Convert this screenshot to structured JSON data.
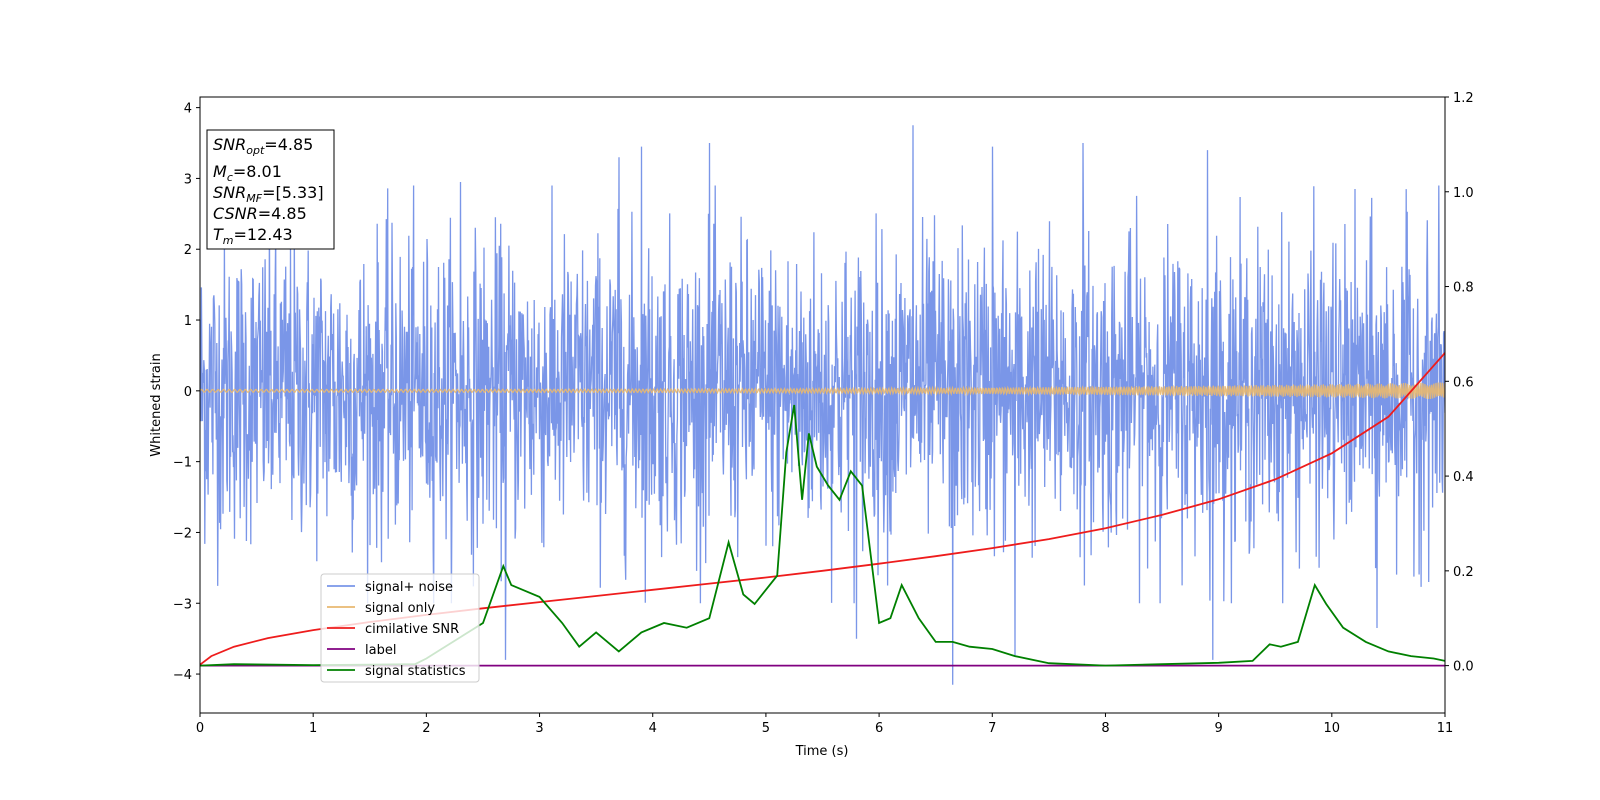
{
  "chart_data": {
    "type": "line",
    "xlabel": "Time (s)",
    "ylabel": "Whitened strain",
    "xlim": [
      0,
      11
    ],
    "ylim": [
      -4.55,
      4.15
    ],
    "y2lim": [
      -0.1,
      1.2
    ],
    "x_ticks": [
      "0",
      "1",
      "2",
      "3",
      "4",
      "5",
      "6",
      "7",
      "8",
      "9",
      "10",
      "11"
    ],
    "y_ticks": [
      "−4",
      "−3",
      "−2",
      "−1",
      "0",
      "1",
      "2",
      "3",
      "4"
    ],
    "y2_ticks": [
      "0.0",
      "0.2",
      "0.4",
      "0.6",
      "0.8",
      "1.0",
      "1.2"
    ],
    "info_box": [
      {
        "base": "SNR",
        "sub": "opt",
        "rest": "=4.85"
      },
      {
        "base": "M",
        "sub": "c",
        "rest": "=8.01"
      },
      {
        "base": "SNR",
        "sub": "MF",
        "rest": "=[5.33]"
      },
      {
        "base": "CSNR",
        "sub": "",
        "rest": "=4.85"
      },
      {
        "base": "T",
        "sub": "m",
        "rest": "=12.43"
      }
    ],
    "legend": {
      "placement": "lower-left"
    },
    "series": [
      {
        "name": "signal+ noise",
        "axis": "left",
        "color": "#7a96e8",
        "kind": "noise",
        "band": {
          "sigma": 1.0,
          "peaks_up": [
            [
              4.5,
              3.5
            ],
            [
              6.3,
              3.75
            ],
            [
              7.0,
              3.45
            ],
            [
              7.8,
              3.5
            ],
            [
              8.9,
              3.4
            ],
            [
              2.3,
              2.95
            ],
            [
              3.7,
              3.3
            ],
            [
              3.9,
              3.45
            ]
          ],
          "peaks_down": [
            [
              2.7,
              -3.8
            ],
            [
              6.65,
              -4.15
            ],
            [
              7.2,
              -3.75
            ],
            [
              8.95,
              -3.8
            ],
            [
              10.4,
              -3.35
            ],
            [
              5.8,
              -3.5
            ]
          ]
        }
      },
      {
        "name": "signal only",
        "axis": "left",
        "color": "#e8b870",
        "kind": "chirp",
        "amp_start": 0.02,
        "amp_end": 0.12
      },
      {
        "name": "cimilative SNR",
        "axis": "right",
        "color": "#ee1c1c",
        "x": [
          0,
          0.1,
          0.3,
          0.6,
          1,
          1.5,
          2,
          2.5,
          3,
          3.5,
          4,
          4.5,
          5,
          5.5,
          6,
          6.5,
          7,
          7.5,
          8,
          8.5,
          9,
          9.5,
          10,
          10.5,
          11
        ],
        "y": [
          0.002,
          0.02,
          0.04,
          0.058,
          0.075,
          0.092,
          0.107,
          0.121,
          0.134,
          0.147,
          0.16,
          0.173,
          0.186,
          0.2,
          0.215,
          0.231,
          0.248,
          0.267,
          0.29,
          0.318,
          0.351,
          0.393,
          0.448,
          0.525,
          0.66
        ]
      },
      {
        "name": "label",
        "axis": "right",
        "color": "#800080",
        "x": [
          0,
          11
        ],
        "y": [
          0,
          0
        ]
      },
      {
        "name": "signal statistics",
        "axis": "right",
        "color": "#008000",
        "x": [
          0,
          0.3,
          1.0,
          1.5,
          1.9,
          2.0,
          2.1,
          2.3,
          2.5,
          2.68,
          2.75,
          2.85,
          3.0,
          3.2,
          3.35,
          3.5,
          3.7,
          3.9,
          4.1,
          4.3,
          4.5,
          4.67,
          4.8,
          4.9,
          5.1,
          5.18,
          5.25,
          5.32,
          5.38,
          5.45,
          5.55,
          5.65,
          5.75,
          5.85,
          6.0,
          6.1,
          6.2,
          6.35,
          6.5,
          6.65,
          6.8,
          7.0,
          7.2,
          7.5,
          8.0,
          8.5,
          9.0,
          9.3,
          9.45,
          9.55,
          9.7,
          9.85,
          9.95,
          10.1,
          10.3,
          10.5,
          10.7,
          10.9,
          11.0
        ],
        "y": [
          0.0,
          0.003,
          0.001,
          0.002,
          0.003,
          0.015,
          0.03,
          0.06,
          0.09,
          0.21,
          0.17,
          0.16,
          0.145,
          0.09,
          0.04,
          0.07,
          0.03,
          0.07,
          0.09,
          0.08,
          0.1,
          0.26,
          0.15,
          0.13,
          0.19,
          0.45,
          0.55,
          0.35,
          0.49,
          0.42,
          0.38,
          0.35,
          0.41,
          0.38,
          0.09,
          0.1,
          0.17,
          0.1,
          0.05,
          0.05,
          0.04,
          0.035,
          0.02,
          0.005,
          0.0,
          0.003,
          0.006,
          0.01,
          0.045,
          0.04,
          0.05,
          0.17,
          0.13,
          0.08,
          0.05,
          0.03,
          0.02,
          0.015,
          0.01
        ]
      }
    ]
  }
}
